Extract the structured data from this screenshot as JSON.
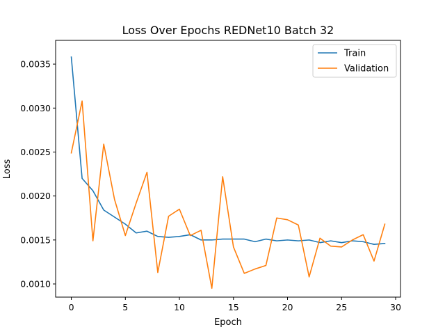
{
  "chart_data": {
    "type": "line",
    "title": "Loss Over Epochs REDNet10 Batch 32",
    "xlabel": "Epoch",
    "ylabel": "Loss",
    "xlim": [
      -1.45,
      30.45
    ],
    "ylim": [
      0.00085,
      0.00377
    ],
    "x_ticks": [
      0,
      5,
      10,
      15,
      20,
      25,
      30
    ],
    "x_tick_labels": [
      "0",
      "5",
      "10",
      "15",
      "20",
      "25",
      "30"
    ],
    "y_ticks": [
      0.001,
      0.0015,
      0.002,
      0.0025,
      0.003,
      0.0035
    ],
    "y_tick_labels": [
      "0.0010",
      "0.0015",
      "0.0020",
      "0.0025",
      "0.0030",
      "0.0035"
    ],
    "grid": false,
    "legend_position": "top-right",
    "x": [
      0,
      1,
      2,
      3,
      4,
      5,
      6,
      7,
      8,
      9,
      10,
      11,
      12,
      13,
      14,
      15,
      16,
      17,
      18,
      19,
      20,
      21,
      22,
      23,
      24,
      25,
      26,
      27,
      28,
      29
    ],
    "series": [
      {
        "name": "Train",
        "color": "#1f77b4",
        "values": [
          0.00358,
          0.0022,
          0.00206,
          0.00184,
          0.00176,
          0.00168,
          0.00158,
          0.0016,
          0.00154,
          0.00153,
          0.00154,
          0.00156,
          0.0015,
          0.0015,
          0.00151,
          0.00151,
          0.00151,
          0.00148,
          0.00151,
          0.00149,
          0.0015,
          0.00149,
          0.0015,
          0.00147,
          0.00149,
          0.00147,
          0.00149,
          0.00148,
          0.00145,
          0.00146
        ]
      },
      {
        "name": "Validation",
        "color": "#ff7f0e",
        "values": [
          0.00249,
          0.00308,
          0.00149,
          0.00259,
          0.00196,
          0.00155,
          0.00192,
          0.00227,
          0.00113,
          0.00177,
          0.00185,
          0.00155,
          0.00161,
          0.00095,
          0.00222,
          0.00142,
          0.00112,
          0.00117,
          0.00121,
          0.00175,
          0.00173,
          0.00167,
          0.00108,
          0.00152,
          0.00143,
          0.00142,
          0.0015,
          0.00156,
          0.00126,
          0.00168
        ]
      }
    ]
  }
}
